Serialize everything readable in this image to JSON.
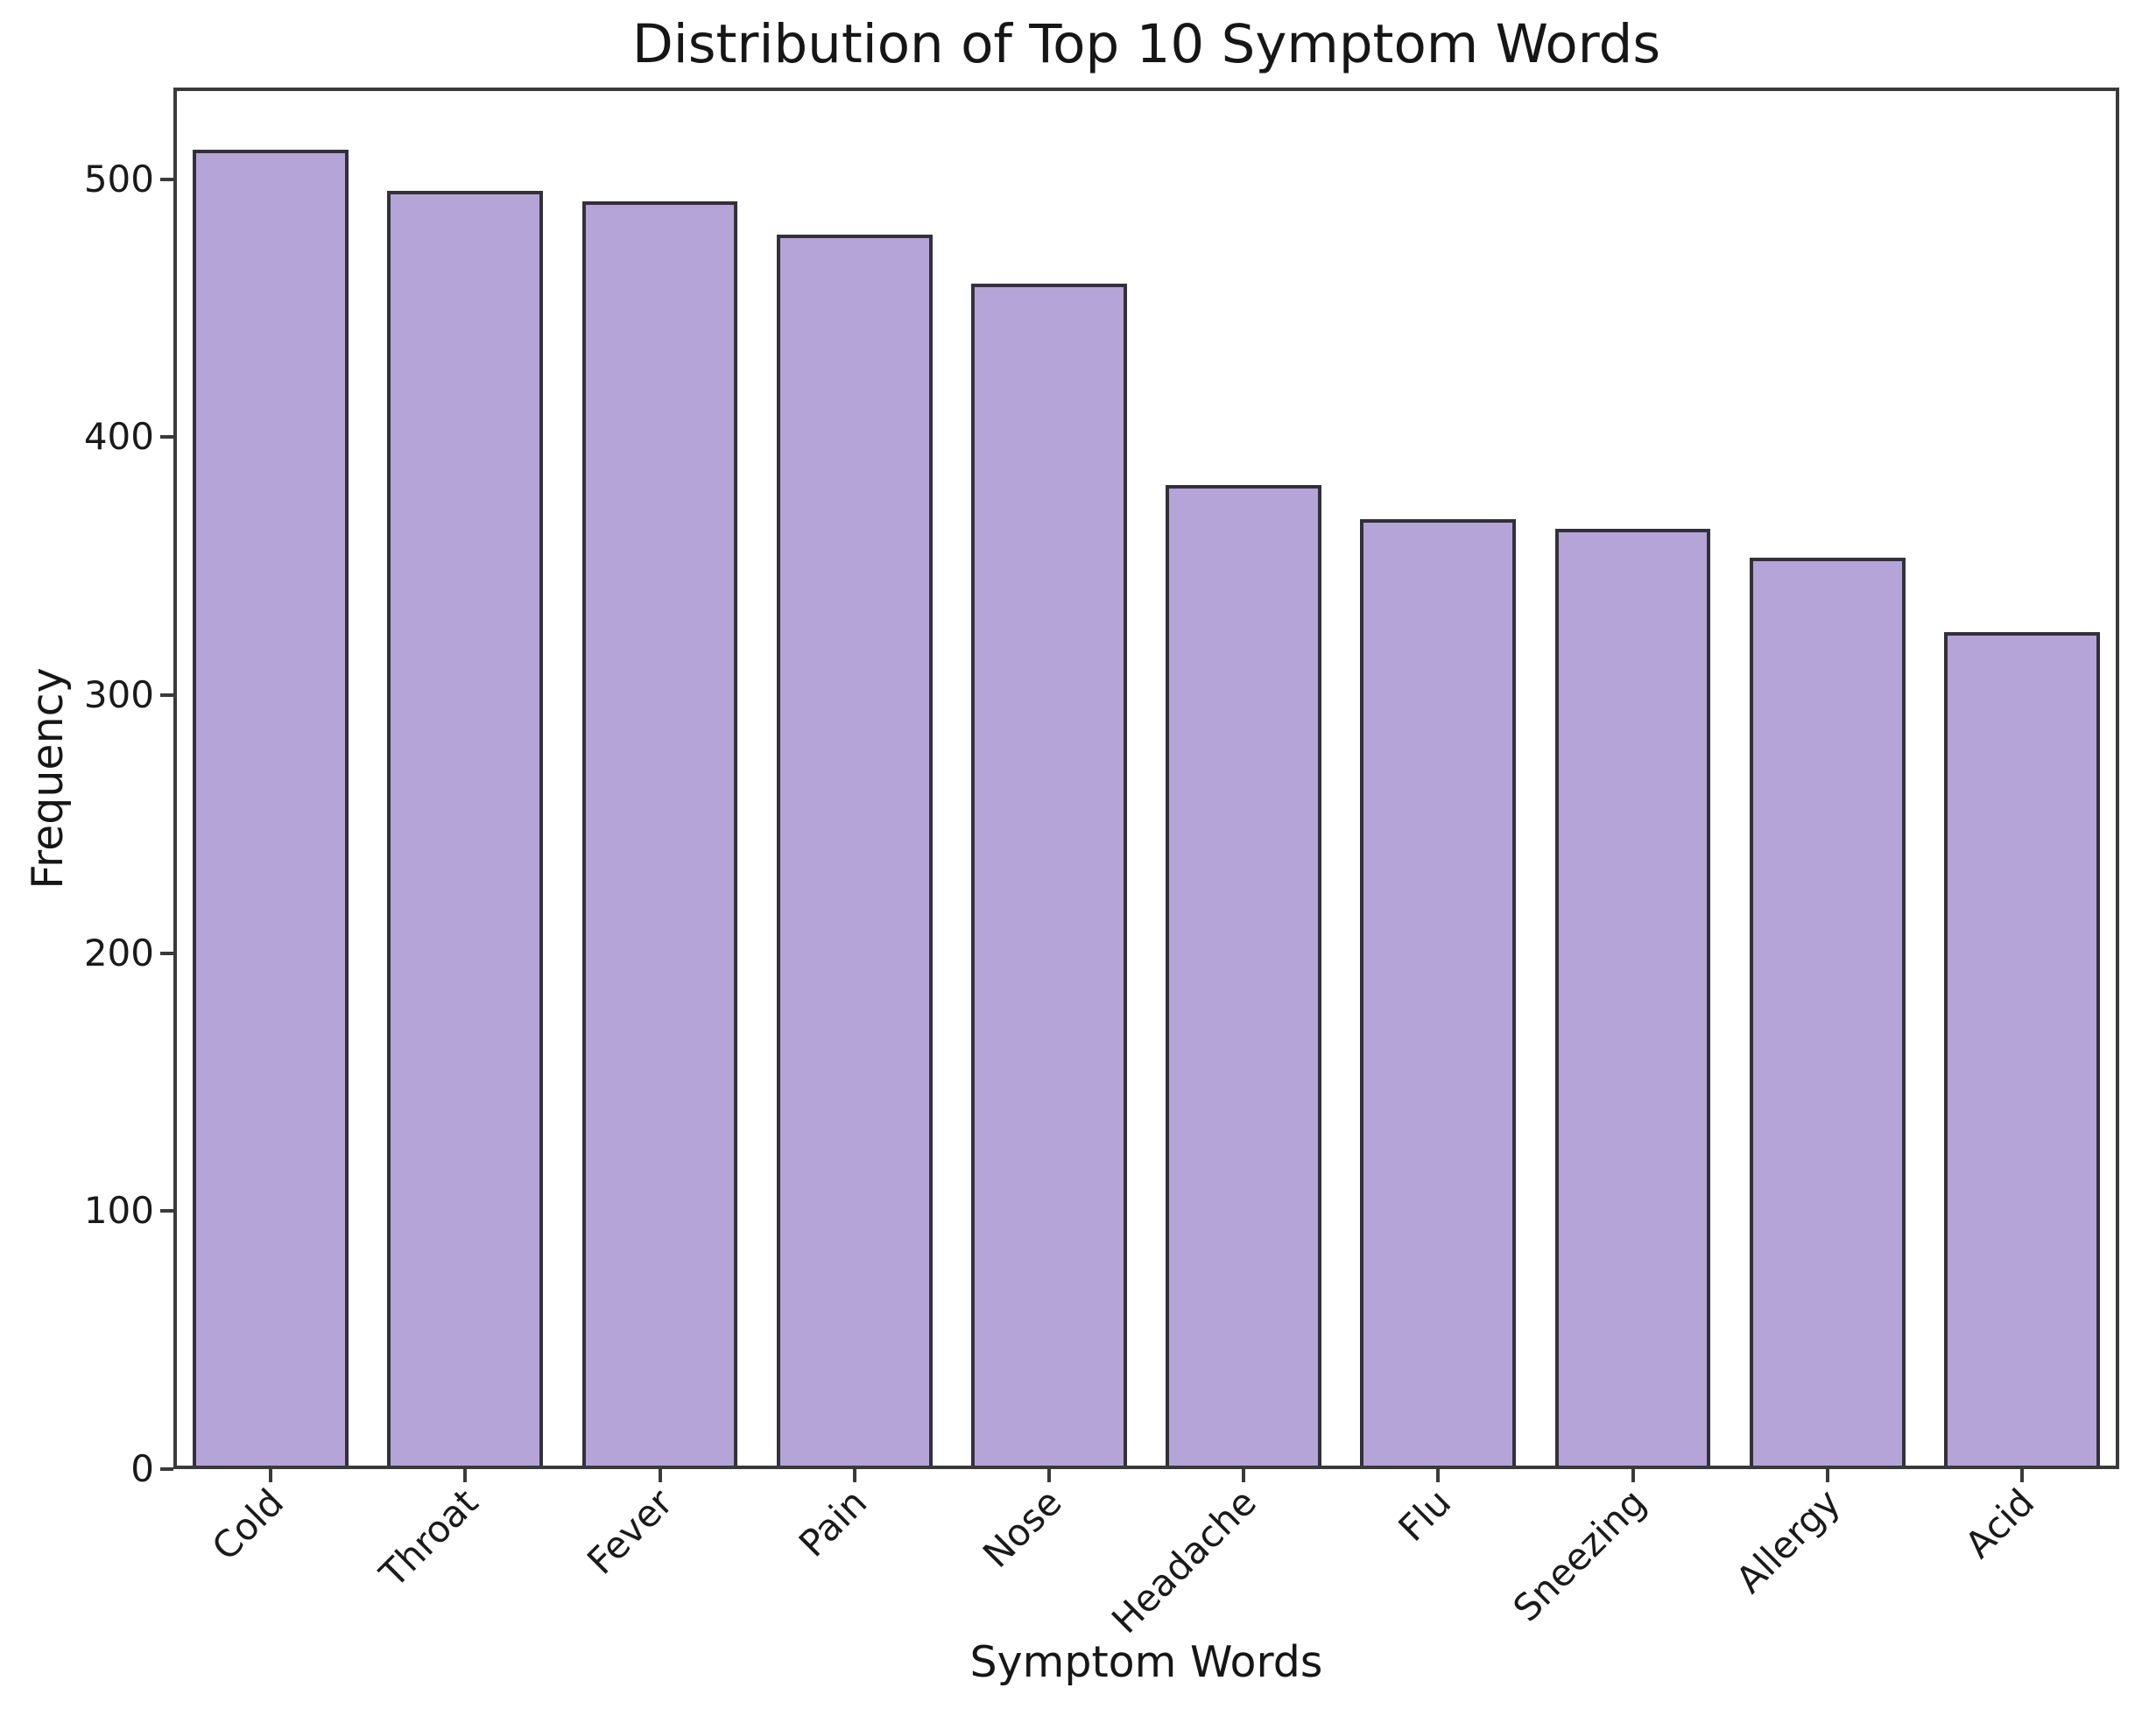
{
  "figure": {
    "background": "#ffffff"
  },
  "chart_data": {
    "type": "bar",
    "title": "Distribution of Top 10 Symptom Words",
    "xlabel": "Symptom Words",
    "ylabel": "Frequency",
    "categories": [
      "Cold",
      "Throat",
      "Fever",
      "Pain",
      "Nose",
      "Headache",
      "Flu",
      "Sneezing",
      "Allergy",
      "Acid"
    ],
    "values": [
      510,
      494,
      490,
      477,
      458,
      380,
      367,
      363,
      352,
      323
    ],
    "yticks": [
      0,
      100,
      200,
      300,
      400,
      500
    ],
    "ylim": [
      0,
      535.5
    ],
    "grid": false,
    "legend_position": "none",
    "x_tick_rotation_deg": 45,
    "bar_color": "#b5a4d8",
    "bar_edge_color": "#33303a",
    "axis_color": "#3a3a3a",
    "text_color": "#1a1a1a"
  }
}
